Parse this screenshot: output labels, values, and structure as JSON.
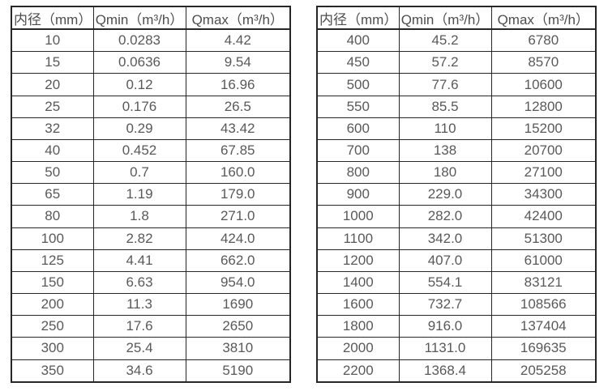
{
  "page": {
    "background_color": "#ffffff",
    "border_color": "#262626",
    "text_color": "#595959"
  },
  "tables": [
    {
      "name": "flow-rate-table-small-diameters",
      "headers": [
        "内径（mm）",
        "Qmin（m³/h）",
        "Qmax（m³/h）"
      ],
      "rows": [
        [
          "10",
          "0.0283",
          "4.42"
        ],
        [
          "15",
          "0.0636",
          "9.54"
        ],
        [
          "20",
          "0.12",
          "16.96"
        ],
        [
          "25",
          "0.176",
          "26.5"
        ],
        [
          "32",
          "0.29",
          "43.42"
        ],
        [
          "40",
          "0.452",
          "67.85"
        ],
        [
          "50",
          "0.7",
          "160.0"
        ],
        [
          "65",
          "1.19",
          "179.0"
        ],
        [
          "80",
          "1.8",
          "271.0"
        ],
        [
          "100",
          "2.82",
          "424.0"
        ],
        [
          "125",
          "4.41",
          "662.0"
        ],
        [
          "150",
          "6.63",
          "954.0"
        ],
        [
          "200",
          "11.3",
          "1690"
        ],
        [
          "250",
          "17.6",
          "2650"
        ],
        [
          "300",
          "25.4",
          "3810"
        ],
        [
          "350",
          "34.6",
          "5190"
        ]
      ]
    },
    {
      "name": "flow-rate-table-large-diameters",
      "headers": [
        "内径（mm）",
        "Qmin（m³/h）",
        "Qmax（m³/h）"
      ],
      "rows": [
        [
          "400",
          "45.2",
          "6780"
        ],
        [
          "450",
          "57.2",
          "8570"
        ],
        [
          "500",
          "77.6",
          "10600"
        ],
        [
          "550",
          "85.5",
          "12800"
        ],
        [
          "600",
          "110",
          "15200"
        ],
        [
          "700",
          "138",
          "20700"
        ],
        [
          "800",
          "180",
          "27100"
        ],
        [
          "900",
          "229.0",
          "34300"
        ],
        [
          "1000",
          "282.0",
          "42400"
        ],
        [
          "1100",
          "342.0",
          "51300"
        ],
        [
          "1200",
          "407.0",
          "61000"
        ],
        [
          "1400",
          "554.1",
          "83121"
        ],
        [
          "1600",
          "732.7",
          "108566"
        ],
        [
          "1800",
          "916.0",
          "137404"
        ],
        [
          "2000",
          "1131.0",
          "169635"
        ],
        [
          "2200",
          "1368.4",
          "205258"
        ]
      ]
    }
  ]
}
